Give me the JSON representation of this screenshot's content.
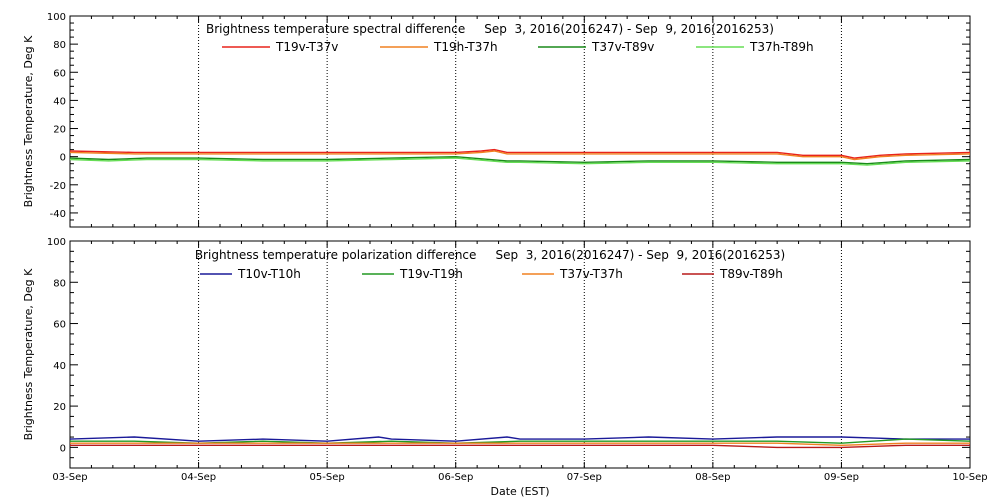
{
  "chart_data": [
    {
      "type": "line",
      "title": "Brightness temperature spectral difference     Sep  3, 2016(2016247) - Sep  9, 2016(2016253)",
      "ylabel": "Brightness Temperature, Deg K",
      "xlabel": "",
      "ylim": [
        -50,
        100
      ],
      "yticks": [
        -40,
        -20,
        0,
        20,
        40,
        60,
        80,
        100
      ],
      "xlim": [
        0,
        7
      ],
      "grid": "vertical-dotted",
      "legend_position": "top",
      "series": [
        {
          "name": "T19v-T37v",
          "color": "#e8231b",
          "x": [
            0,
            0.5,
            1,
            1.5,
            2,
            2.5,
            3,
            3.2,
            3.3,
            3.4,
            3.5,
            4,
            4.5,
            5,
            5.5,
            5.7,
            6,
            6.1,
            6.3,
            6.5,
            7
          ],
          "y": [
            4,
            3,
            3,
            3,
            3,
            3,
            3,
            4,
            5,
            3,
            3,
            3,
            3,
            3,
            3,
            1,
            1,
            -1,
            1,
            2,
            3
          ]
        },
        {
          "name": "T19h-T37h",
          "color": "#f08020",
          "x": [
            0,
            0.5,
            1,
            1.5,
            2,
            2.5,
            3,
            3.2,
            3.3,
            3.4,
            3.5,
            4,
            4.5,
            5,
            5.5,
            5.7,
            6,
            6.1,
            6.3,
            6.5,
            7
          ],
          "y": [
            3,
            2,
            2,
            2,
            2,
            2,
            2,
            3,
            4,
            2,
            2,
            2,
            2,
            2,
            2,
            0,
            0,
            -2,
            0,
            1,
            2
          ]
        },
        {
          "name": "T37v-T89v",
          "color": "#1a8a1a",
          "x": [
            0,
            0.3,
            0.6,
            1,
            1.5,
            2,
            2.5,
            3,
            3.4,
            3.5,
            4,
            4.5,
            5,
            5.5,
            6,
            6.2,
            6.5,
            7
          ],
          "y": [
            -1,
            -2,
            -1,
            -1,
            -2,
            -2,
            -1,
            0,
            -3,
            -3,
            -4,
            -3,
            -3,
            -4,
            -4,
            -5,
            -3,
            -2
          ]
        },
        {
          "name": "T37h-T89h",
          "color": "#66dd55",
          "x": [
            0,
            0.3,
            0.6,
            1,
            1.5,
            2,
            2.5,
            3,
            3.4,
            3.5,
            4,
            4.5,
            5,
            5.5,
            6,
            6.2,
            6.5,
            7
          ],
          "y": [
            -2,
            -3,
            -2,
            -2,
            -3,
            -3,
            -2,
            -1,
            -4,
            -4,
            -5,
            -4,
            -4,
            -5,
            -5,
            -6,
            -4,
            -3
          ]
        }
      ]
    },
    {
      "type": "line",
      "title": "Brightness temperature polarization difference     Sep  3, 2016(2016247) - Sep  9, 2016(2016253)",
      "ylabel": "Brightness Temperature, Deg K",
      "xlabel": "Date (EST)",
      "ylim": [
        -10,
        100
      ],
      "yticks": [
        0,
        20,
        40,
        60,
        80,
        100
      ],
      "xlim": [
        0,
        7
      ],
      "grid": "vertical-dotted",
      "legend_position": "top",
      "categories": [
        "03-Sep",
        "04-Sep",
        "05-Sep",
        "06-Sep",
        "07-Sep",
        "08-Sep",
        "09-Sep",
        "10-Sep"
      ],
      "series": [
        {
          "name": "T10v-T10h",
          "color": "#1a1a99",
          "x": [
            0,
            0.5,
            1,
            1.5,
            2,
            2.4,
            2.5,
            3,
            3.4,
            3.5,
            4,
            4.5,
            5,
            5.5,
            6,
            6.5,
            7
          ],
          "y": [
            4,
            5,
            3,
            4,
            3,
            5,
            4,
            3,
            5,
            4,
            4,
            5,
            4,
            5,
            5,
            4,
            4
          ]
        },
        {
          "name": "T19v-T19h",
          "color": "#229922",
          "x": [
            0,
            0.5,
            1,
            1.5,
            2,
            2.5,
            3,
            3.5,
            4,
            4.5,
            5,
            5.5,
            6,
            6.5,
            7
          ],
          "y": [
            3,
            3,
            2,
            3,
            2,
            3,
            2,
            3,
            3,
            3,
            3,
            3,
            2,
            4,
            3
          ]
        },
        {
          "name": "T37v-T37h",
          "color": "#f08020",
          "x": [
            0,
            0.5,
            1,
            1.5,
            2,
            2.5,
            3,
            3.5,
            4,
            4.5,
            5,
            5.5,
            6,
            6.5,
            7
          ],
          "y": [
            2,
            2,
            2,
            2,
            2,
            2,
            2,
            2,
            2,
            2,
            2,
            2,
            1,
            2,
            2
          ]
        },
        {
          "name": "T89v-T89h",
          "color": "#b81a1a",
          "x": [
            0,
            0.5,
            1,
            1.5,
            2,
            2.5,
            3,
            3.5,
            4,
            4.5,
            5,
            5.5,
            6,
            6.5,
            7
          ],
          "y": [
            1,
            1,
            1,
            1,
            1,
            1,
            1,
            1,
            1,
            1,
            1,
            0,
            0,
            1,
            1
          ]
        }
      ]
    }
  ]
}
